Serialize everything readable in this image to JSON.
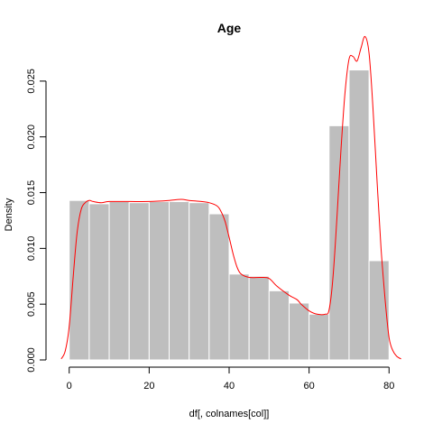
{
  "chart_data": {
    "type": "bar",
    "title": "Age",
    "xlabel": "df[, colnames[col]]",
    "ylabel": "Density",
    "xlim": [
      -4,
      84
    ],
    "ylim": [
      0,
      0.0275
    ],
    "x_ticks": [
      0,
      20,
      40,
      60,
      80
    ],
    "y_ticks": [
      0.0,
      0.005,
      0.01,
      0.015,
      0.02,
      0.025
    ],
    "y_tick_labels": [
      "0.000",
      "0.005",
      "0.010",
      "0.015",
      "0.020",
      "0.025"
    ],
    "bin_width": 5,
    "bin_starts": [
      0,
      5,
      10,
      15,
      20,
      25,
      30,
      35,
      40,
      45,
      50,
      55,
      60,
      65,
      70,
      75
    ],
    "values": [
      0.0143,
      0.014,
      0.0142,
      0.0141,
      0.0142,
      0.0142,
      0.0141,
      0.0131,
      0.0077,
      0.0075,
      0.0062,
      0.0051,
      0.0041,
      0.021,
      0.026,
      0.0089
    ],
    "bar_color": "#bebebe",
    "bar_border_color": "#ffffff",
    "density_curve": {
      "color": "#ff0000",
      "x": [
        -2,
        -1,
        0,
        1,
        2,
        3,
        4,
        5,
        6,
        8,
        10,
        15,
        20,
        25,
        28,
        30,
        33,
        35,
        37,
        38,
        39,
        40,
        41,
        42,
        43,
        45,
        48,
        50,
        52,
        55,
        57,
        58,
        60,
        62,
        64,
        65,
        66,
        67,
        68,
        69,
        70,
        71,
        72,
        73,
        74,
        75,
        76,
        77,
        78,
        79,
        80,
        81,
        82,
        83
      ],
      "y": [
        0.0001,
        0.0008,
        0.003,
        0.0075,
        0.0115,
        0.0135,
        0.0141,
        0.0143,
        0.0142,
        0.0141,
        0.0142,
        0.0142,
        0.0142,
        0.0143,
        0.0144,
        0.0143,
        0.0142,
        0.0141,
        0.0138,
        0.0133,
        0.0124,
        0.011,
        0.0095,
        0.0083,
        0.0077,
        0.0074,
        0.0074,
        0.0073,
        0.0066,
        0.0058,
        0.0054,
        0.005,
        0.0044,
        0.0041,
        0.0041,
        0.0045,
        0.0075,
        0.013,
        0.019,
        0.024,
        0.027,
        0.0272,
        0.0268,
        0.028,
        0.029,
        0.0275,
        0.0225,
        0.016,
        0.01,
        0.0055,
        0.002,
        0.0008,
        0.0003,
        0.0001
      ]
    }
  }
}
